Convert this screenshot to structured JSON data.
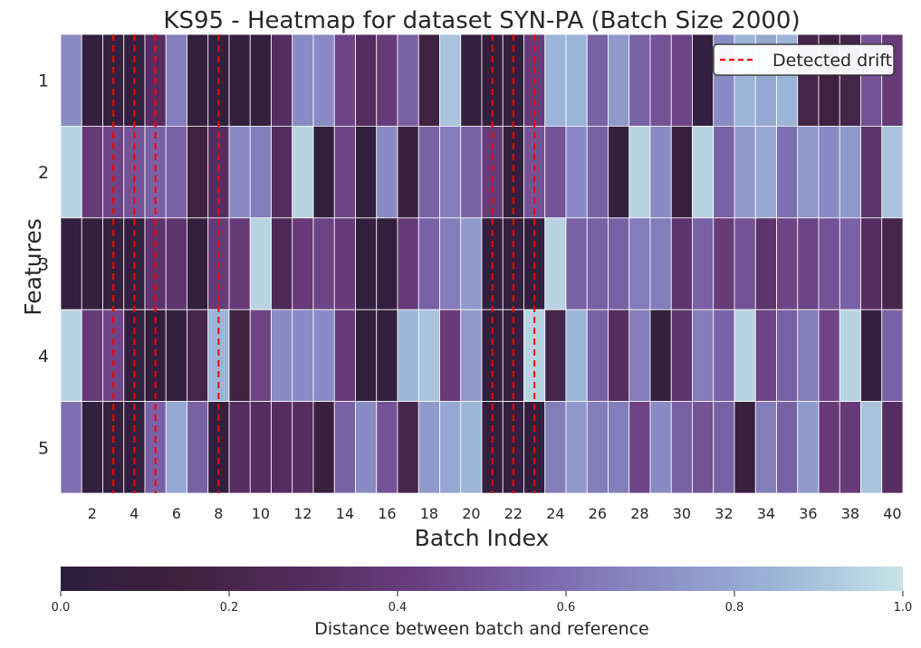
{
  "chart_data": {
    "type": "heatmap",
    "title": "KS95 - Heatmap for dataset SYN-PA (Batch Size 2000)",
    "xlabel": "Batch Index",
    "ylabel": "Features",
    "x": [
      1,
      2,
      3,
      4,
      5,
      6,
      7,
      8,
      9,
      10,
      11,
      12,
      13,
      14,
      15,
      16,
      17,
      18,
      19,
      20,
      21,
      22,
      23,
      24,
      25,
      26,
      27,
      28,
      29,
      30,
      31,
      32,
      33,
      34,
      35,
      36,
      37,
      38,
      39,
      40
    ],
    "x_tick_labels": [
      "2",
      "4",
      "6",
      "8",
      "10",
      "12",
      "14",
      "16",
      "18",
      "20",
      "22",
      "24",
      "26",
      "28",
      "30",
      "32",
      "34",
      "36",
      "38",
      "40"
    ],
    "y_tick_labels": [
      "1",
      "2",
      "3",
      "4",
      "5"
    ],
    "values": [
      [
        0.7,
        0.05,
        0.05,
        0.05,
        0.3,
        0.65,
        0.05,
        0.05,
        0.05,
        0.05,
        0.3,
        0.7,
        0.7,
        0.45,
        0.3,
        0.4,
        0.55,
        0.15,
        0.9,
        0.05,
        0.05,
        0.05,
        0.4,
        0.85,
        0.85,
        0.55,
        0.75,
        0.55,
        0.5,
        0.45,
        0.05,
        0.7,
        0.85,
        0.8,
        0.85,
        0.2,
        0.15,
        0.2,
        0.5,
        0.4
      ],
      [
        0.95,
        0.4,
        0.45,
        0.5,
        0.55,
        0.55,
        0.15,
        0.3,
        0.7,
        0.65,
        0.3,
        0.95,
        0.05,
        0.45,
        0.05,
        0.7,
        0.1,
        0.55,
        0.65,
        0.55,
        0.4,
        0.05,
        0.5,
        0.5,
        0.7,
        0.55,
        0.05,
        0.95,
        0.7,
        0.1,
        0.95,
        0.55,
        0.75,
        0.8,
        0.6,
        0.75,
        0.7,
        0.75,
        0.35,
        0.9
      ],
      [
        0.05,
        0.05,
        0.05,
        0.05,
        0.35,
        0.35,
        0.05,
        0.4,
        0.4,
        0.95,
        0.25,
        0.4,
        0.45,
        0.4,
        0.05,
        0.05,
        0.4,
        0.55,
        0.65,
        0.75,
        0.05,
        0.05,
        0.05,
        0.95,
        0.55,
        0.55,
        0.55,
        0.65,
        0.65,
        0.35,
        0.55,
        0.4,
        0.5,
        0.35,
        0.45,
        0.45,
        0.5,
        0.55,
        0.3,
        0.2
      ],
      [
        0.95,
        0.4,
        0.45,
        0.05,
        0.05,
        0.05,
        0.2,
        0.85,
        0.15,
        0.45,
        0.7,
        0.7,
        0.7,
        0.4,
        0.05,
        0.05,
        0.85,
        0.9,
        0.4,
        0.75,
        0.05,
        0.05,
        0.95,
        0.2,
        0.85,
        0.55,
        0.3,
        0.65,
        0.05,
        0.35,
        0.65,
        0.55,
        0.95,
        0.45,
        0.55,
        0.65,
        0.45,
        0.95,
        0.05,
        0.55
      ],
      [
        0.6,
        0.05,
        0.05,
        0.05,
        0.55,
        0.8,
        0.55,
        0.05,
        0.3,
        0.3,
        0.3,
        0.3,
        0.1,
        0.55,
        0.7,
        0.5,
        0.2,
        0.75,
        0.8,
        0.85,
        0.05,
        0.05,
        0.05,
        0.65,
        0.75,
        0.65,
        0.65,
        0.45,
        0.7,
        0.55,
        0.5,
        0.55,
        0.1,
        0.65,
        0.55,
        0.75,
        0.4,
        0.4,
        0.9,
        0.3
      ]
    ],
    "drift_batches": [
      3,
      4,
      5,
      8,
      21,
      22,
      23
    ],
    "legend": {
      "entries": [
        "Detected drift"
      ],
      "placement": "top-right"
    },
    "colorbar": {
      "label": "Distance between batch and reference",
      "range": [
        0.0,
        1.0
      ],
      "ticks": [
        "0.0",
        "0.2",
        "0.4",
        "0.6",
        "0.8",
        "1.0"
      ],
      "orientation": "horizontal",
      "placement": "bottom"
    },
    "colormap": [
      "#2d1e3e",
      "#3e213d",
      "#532b5d",
      "#6b3f7f",
      "#7b67ad",
      "#8b8fc6",
      "#9db7d8",
      "#c7e3e8"
    ],
    "drift_line_color": "#ff0000",
    "grid": false
  }
}
